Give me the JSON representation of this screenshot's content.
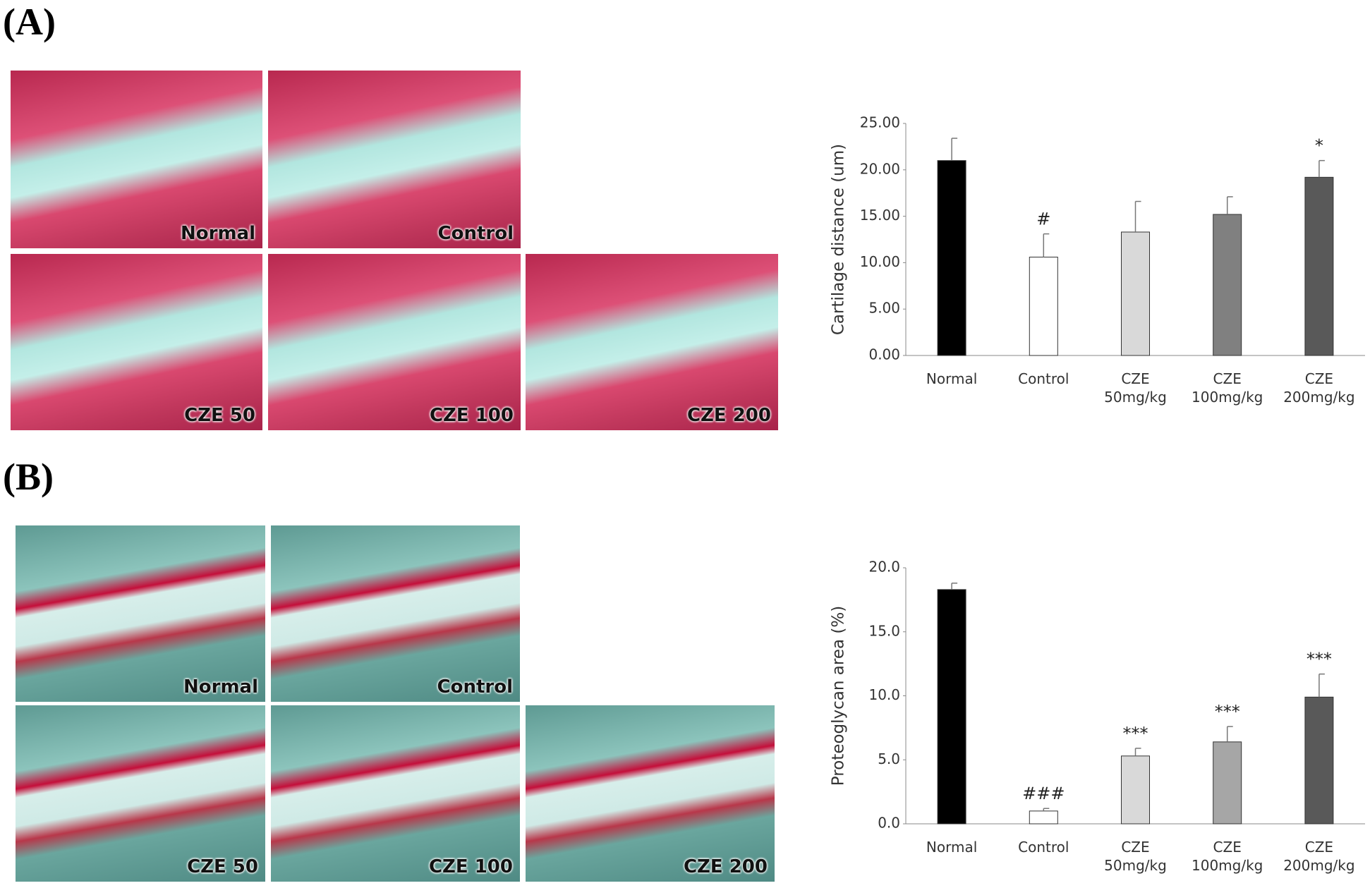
{
  "panels": [
    {
      "label": "(A)",
      "images": [
        "Normal",
        "Control",
        "CZE 50",
        "CZE 100",
        "CZE 200"
      ]
    },
    {
      "label": "(B)",
      "images": [
        "Normal",
        "Control",
        "CZE 50",
        "CZE 100",
        "CZE 200"
      ]
    }
  ],
  "chart_data": [
    {
      "type": "bar",
      "y_label": "Cartilage distance (um)",
      "categories": [
        "Normal",
        "Control",
        "CZE 50mg/kg",
        "CZE 100mg/kg",
        "CZE 200mg/kg"
      ],
      "values": [
        21.0,
        10.6,
        13.3,
        15.2,
        19.2
      ],
      "errors": [
        2.4,
        2.5,
        3.3,
        1.9,
        1.8
      ],
      "colors": [
        "#000000",
        "#ffffff",
        "#d9d9d9",
        "#808080",
        "#595959"
      ],
      "ylim": [
        0,
        25
      ],
      "yticks": [
        {
          "value": 0,
          "label": "0.00"
        },
        {
          "value": 5,
          "label": "5.00"
        },
        {
          "value": 10,
          "label": "10.00"
        },
        {
          "value": 15,
          "label": "15.00"
        },
        {
          "value": 20,
          "label": "20.00"
        },
        {
          "value": 25,
          "label": "25.00"
        }
      ],
      "annotations": [
        {
          "x": "Control",
          "text": "#"
        },
        {
          "x": "CZE 200mg/kg",
          "text": "*"
        }
      ]
    },
    {
      "type": "bar",
      "y_label": "Proteoglycan area (%)",
      "categories": [
        "Normal",
        "Control",
        "CZE 50mg/kg",
        "CZE 100mg/kg",
        "CZE 200mg/kg"
      ],
      "values": [
        18.3,
        1.0,
        5.3,
        6.4,
        9.9
      ],
      "errors": [
        0.5,
        0.2,
        0.6,
        1.2,
        1.8
      ],
      "colors": [
        "#000000",
        "#ffffff",
        "#d9d9d9",
        "#a6a6a6",
        "#595959"
      ],
      "ylim": [
        0,
        20
      ],
      "yticks": [
        {
          "value": 0,
          "label": "0.0"
        },
        {
          "value": 5,
          "label": "5.0"
        },
        {
          "value": 10,
          "label": "10.0"
        },
        {
          "value": 15,
          "label": "15.0"
        },
        {
          "value": 20,
          "label": "20.0"
        }
      ],
      "annotations": [
        {
          "x": "Control",
          "text": "###"
        },
        {
          "x": "CZE 50mg/kg",
          "text": "***"
        },
        {
          "x": "CZE 100mg/kg",
          "text": "***"
        },
        {
          "x": "CZE 200mg/kg",
          "text": "***"
        }
      ]
    }
  ]
}
